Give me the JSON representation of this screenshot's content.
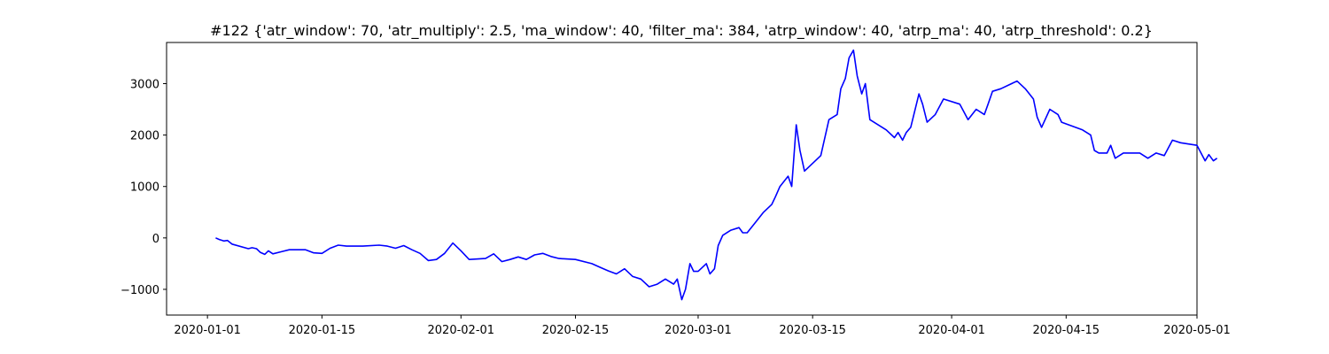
{
  "chart_data": {
    "type": "line",
    "title": "#122 {'atr_window': 70, 'atr_multiply': 2.5, 'ma_window': 40, 'filter_ma': 384, 'atrp_window': 40, 'atrp_ma': 40, 'atrp_threshold': 0.2}",
    "xlabel": "",
    "ylabel": "",
    "xlim": [
      "2019-12-27",
      "2020-05-01"
    ],
    "ylim": [
      -1500,
      3800
    ],
    "grid": false,
    "x_ticks": [
      "2020-01-01",
      "2020-01-15",
      "2020-02-01",
      "2020-02-15",
      "2020-03-01",
      "2020-03-15",
      "2020-04-01",
      "2020-04-15",
      "2020-05-01"
    ],
    "y_ticks": [
      -1000,
      0,
      1000,
      2000,
      3000
    ],
    "y_tick_labels": [
      "−1000",
      "0",
      "1000",
      "2000",
      "3000"
    ],
    "series": [
      {
        "color": "#0000ff",
        "points": [
          [
            "2020-01-02",
            0
          ],
          [
            "2020-01-02",
            -30
          ],
          [
            "2020-01-03",
            -60
          ],
          [
            "2020-01-03",
            -50
          ],
          [
            "2020-01-04",
            -120
          ],
          [
            "2020-01-06",
            -210
          ],
          [
            "2020-01-06",
            -190
          ],
          [
            "2020-01-07",
            -210
          ],
          [
            "2020-01-07",
            -280
          ],
          [
            "2020-01-08",
            -320
          ],
          [
            "2020-01-08",
            -250
          ],
          [
            "2020-01-09",
            -310
          ],
          [
            "2020-01-10",
            -270
          ],
          [
            "2020-01-11",
            -230
          ],
          [
            "2020-01-13",
            -230
          ],
          [
            "2020-01-14",
            -290
          ],
          [
            "2020-01-15",
            -300
          ],
          [
            "2020-01-16",
            -200
          ],
          [
            "2020-01-17",
            -140
          ],
          [
            "2020-01-18",
            -160
          ],
          [
            "2020-01-20",
            -160
          ],
          [
            "2020-01-22",
            -140
          ],
          [
            "2020-01-23",
            -160
          ],
          [
            "2020-01-24",
            -200
          ],
          [
            "2020-01-25",
            -150
          ],
          [
            "2020-01-26",
            -230
          ],
          [
            "2020-01-27",
            -300
          ],
          [
            "2020-01-28",
            -440
          ],
          [
            "2020-01-29",
            -420
          ],
          [
            "2020-01-30",
            -300
          ],
          [
            "2020-01-31",
            -100
          ],
          [
            "2020-02-01",
            -250
          ],
          [
            "2020-02-02",
            -420
          ],
          [
            "2020-02-04",
            -400
          ],
          [
            "2020-02-05",
            -310
          ],
          [
            "2020-02-06",
            -460
          ],
          [
            "2020-02-07",
            -420
          ],
          [
            "2020-02-08",
            -370
          ],
          [
            "2020-02-09",
            -420
          ],
          [
            "2020-02-10",
            -330
          ],
          [
            "2020-02-11",
            -300
          ],
          [
            "2020-02-12",
            -360
          ],
          [
            "2020-02-13",
            -400
          ],
          [
            "2020-02-15",
            -420
          ],
          [
            "2020-02-17",
            -500
          ],
          [
            "2020-02-18",
            -570
          ],
          [
            "2020-02-19",
            -640
          ],
          [
            "2020-02-20",
            -700
          ],
          [
            "2020-02-21",
            -600
          ],
          [
            "2020-02-22",
            -750
          ],
          [
            "2020-02-23",
            -800
          ],
          [
            "2020-02-24",
            -950
          ],
          [
            "2020-02-25",
            -900
          ],
          [
            "2020-02-26",
            -800
          ],
          [
            "2020-02-27",
            -900
          ],
          [
            "2020-02-27",
            -800
          ],
          [
            "2020-02-28",
            -1200
          ],
          [
            "2020-02-28",
            -1000
          ],
          [
            "2020-02-29",
            -500
          ],
          [
            "2020-02-29",
            -650
          ],
          [
            "2020-03-01",
            -650
          ],
          [
            "2020-03-02",
            -500
          ],
          [
            "2020-03-02",
            -700
          ],
          [
            "2020-03-03",
            -600
          ],
          [
            "2020-03-03",
            -150
          ],
          [
            "2020-03-04",
            50
          ],
          [
            "2020-03-05",
            150
          ],
          [
            "2020-03-06",
            200
          ],
          [
            "2020-03-06",
            100
          ],
          [
            "2020-03-07",
            100
          ],
          [
            "2020-03-08",
            300
          ],
          [
            "2020-03-09",
            500
          ],
          [
            "2020-03-10",
            650
          ],
          [
            "2020-03-10",
            800
          ],
          [
            "2020-03-11",
            1000
          ],
          [
            "2020-03-12",
            1200
          ],
          [
            "2020-03-12",
            1000
          ],
          [
            "2020-03-13",
            2200
          ],
          [
            "2020-03-13",
            1700
          ],
          [
            "2020-03-14",
            1300
          ],
          [
            "2020-03-16",
            1600
          ],
          [
            "2020-03-17",
            2300
          ],
          [
            "2020-03-18",
            2400
          ],
          [
            "2020-03-18",
            2900
          ],
          [
            "2020-03-19",
            3100
          ],
          [
            "2020-03-19",
            3500
          ],
          [
            "2020-03-20",
            3650
          ],
          [
            "2020-03-20",
            3150
          ],
          [
            "2020-03-21",
            2800
          ],
          [
            "2020-03-21",
            3000
          ],
          [
            "2020-03-22",
            2300
          ],
          [
            "2020-03-24",
            2100
          ],
          [
            "2020-03-25",
            1950
          ],
          [
            "2020-03-25",
            2050
          ],
          [
            "2020-03-26",
            1900
          ],
          [
            "2020-03-26",
            2050
          ],
          [
            "2020-03-27",
            2150
          ],
          [
            "2020-03-28",
            2800
          ],
          [
            "2020-03-28",
            2600
          ],
          [
            "2020-03-29",
            2250
          ],
          [
            "2020-03-30",
            2400
          ],
          [
            "2020-03-31",
            2700
          ],
          [
            "2020-04-02",
            2600
          ],
          [
            "2020-04-03",
            2300
          ],
          [
            "2020-04-04",
            2500
          ],
          [
            "2020-04-05",
            2400
          ],
          [
            "2020-04-05",
            2600
          ],
          [
            "2020-04-06",
            2850
          ],
          [
            "2020-04-07",
            2900
          ],
          [
            "2020-04-09",
            3050
          ],
          [
            "2020-04-10",
            2900
          ],
          [
            "2020-04-11",
            2700
          ],
          [
            "2020-04-11",
            2350
          ],
          [
            "2020-04-12",
            2150
          ],
          [
            "2020-04-13",
            2500
          ],
          [
            "2020-04-14",
            2400
          ],
          [
            "2020-04-14",
            2250
          ],
          [
            "2020-04-17",
            2100
          ],
          [
            "2020-04-18",
            2000
          ],
          [
            "2020-04-18",
            1700
          ],
          [
            "2020-04-19",
            1650
          ],
          [
            "2020-04-20",
            1650
          ],
          [
            "2020-04-20",
            1800
          ],
          [
            "2020-04-21",
            1550
          ],
          [
            "2020-04-22",
            1650
          ],
          [
            "2020-04-24",
            1650
          ],
          [
            "2020-04-25",
            1550
          ],
          [
            "2020-04-26",
            1650
          ],
          [
            "2020-04-27",
            1600
          ],
          [
            "2020-04-28",
            1900
          ],
          [
            "2020-04-29",
            1850
          ],
          [
            "2020-05-01",
            1800
          ],
          [
            "2020-05-02",
            1500
          ],
          [
            "2020-05-02",
            1620
          ],
          [
            "2020-05-03",
            1500
          ],
          [
            "2020-05-03",
            1550
          ]
        ]
      }
    ]
  }
}
